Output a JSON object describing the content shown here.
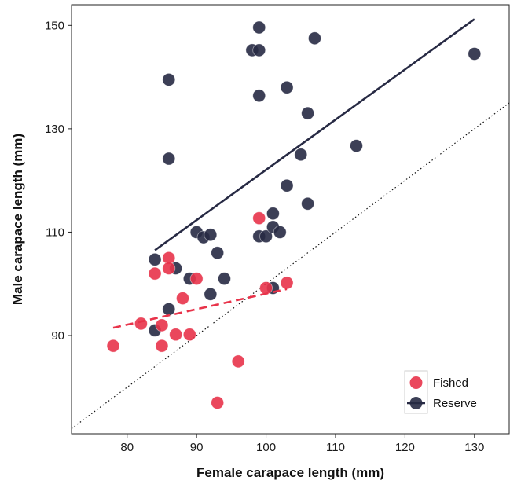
{
  "chart_data": {
    "type": "scatter",
    "title": "",
    "xlabel": "Female carapace length (mm)",
    "ylabel": "Male carapace length (mm)",
    "xlim": [
      72,
      135
    ],
    "ylim": [
      71,
      154
    ],
    "xticks": [
      80,
      90,
      100,
      110,
      120,
      130
    ],
    "yticks": [
      90,
      110,
      130,
      150
    ],
    "grid": false,
    "legend_position": "bottom-right",
    "series": [
      {
        "name": "Fished",
        "color": "#e8334a",
        "line_style": "dashed",
        "fit": {
          "x": [
            78,
            103
          ],
          "y": [
            91.5,
            99
          ]
        },
        "points": [
          {
            "x": 78,
            "y": 88
          },
          {
            "x": 82,
            "y": 92.3
          },
          {
            "x": 84,
            "y": 102
          },
          {
            "x": 85,
            "y": 92
          },
          {
            "x": 85,
            "y": 88
          },
          {
            "x": 86,
            "y": 105
          },
          {
            "x": 86,
            "y": 103
          },
          {
            "x": 87,
            "y": 90.2
          },
          {
            "x": 88,
            "y": 97.2
          },
          {
            "x": 89,
            "y": 90.2
          },
          {
            "x": 90,
            "y": 101
          },
          {
            "x": 93,
            "y": 77
          },
          {
            "x": 96,
            "y": 85
          },
          {
            "x": 99,
            "y": 112.7
          },
          {
            "x": 100,
            "y": 99.2
          },
          {
            "x": 103,
            "y": 100.2
          }
        ]
      },
      {
        "name": "Reserve",
        "color": "#272a44",
        "line_style": "solid",
        "fit": {
          "x": [
            84,
            130
          ],
          "y": [
            106.5,
            151.2
          ]
        },
        "points": [
          {
            "x": 84,
            "y": 104.7
          },
          {
            "x": 84,
            "y": 91
          },
          {
            "x": 86,
            "y": 139.5
          },
          {
            "x": 86,
            "y": 124.2
          },
          {
            "x": 86,
            "y": 95.1
          },
          {
            "x": 87,
            "y": 103
          },
          {
            "x": 89,
            "y": 101
          },
          {
            "x": 90,
            "y": 110
          },
          {
            "x": 91,
            "y": 109
          },
          {
            "x": 92,
            "y": 109.5
          },
          {
            "x": 92,
            "y": 98
          },
          {
            "x": 93,
            "y": 106
          },
          {
            "x": 94,
            "y": 101
          },
          {
            "x": 98,
            "y": 145.2
          },
          {
            "x": 99,
            "y": 149.6
          },
          {
            "x": 99,
            "y": 145.2
          },
          {
            "x": 99,
            "y": 136.4
          },
          {
            "x": 99,
            "y": 109.2
          },
          {
            "x": 100,
            "y": 109.2
          },
          {
            "x": 101,
            "y": 113.6
          },
          {
            "x": 101,
            "y": 111
          },
          {
            "x": 101,
            "y": 99.2
          },
          {
            "x": 102,
            "y": 110
          },
          {
            "x": 103,
            "y": 138
          },
          {
            "x": 103,
            "y": 119
          },
          {
            "x": 105,
            "y": 125
          },
          {
            "x": 106,
            "y": 133
          },
          {
            "x": 106,
            "y": 115.5
          },
          {
            "x": 107,
            "y": 147.5
          },
          {
            "x": 113,
            "y": 126.7
          },
          {
            "x": 130,
            "y": 144.5
          }
        ]
      }
    ],
    "reference_line": {
      "style": "dotted",
      "description": "1:1",
      "x": [
        72,
        135
      ],
      "y": [
        72,
        135
      ]
    }
  }
}
